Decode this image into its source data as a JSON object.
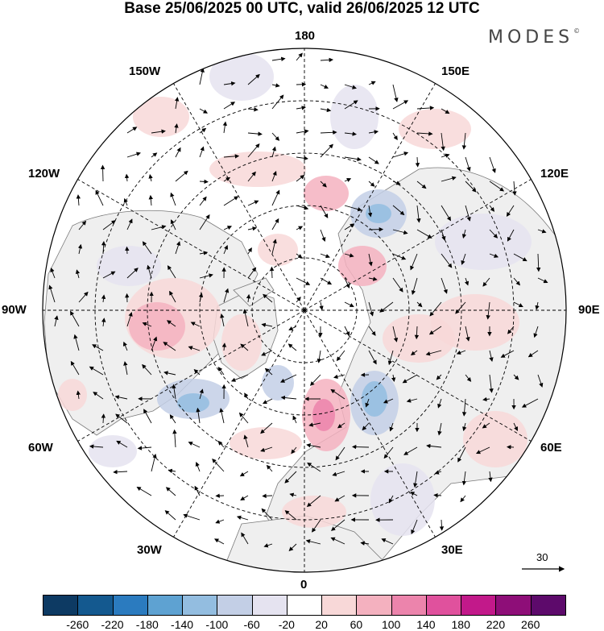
{
  "header": {
    "title": "Base 25/06/2025 00 UTC, valid 26/06/2025 12 UTC",
    "brand": "MODES",
    "brand_mark": "©"
  },
  "map": {
    "projection": "north-polar-stereographic",
    "center": "North Pole",
    "longitude_labels": {
      "top": "180",
      "bottom": "0",
      "left": "90W",
      "right": "90E",
      "upper_left_1": "150W",
      "upper_left_2": "120W",
      "lower_left_1": "60W",
      "lower_left_2": "30W",
      "upper_right_1": "150E",
      "upper_right_2": "120E",
      "lower_right_1": "60E",
      "lower_right_2": "30E"
    },
    "reference_vector": {
      "label": "30"
    },
    "colors": {
      "land": "#efefef",
      "coast": "#7a7a7a",
      "grid": "#000000"
    }
  },
  "colorbar": {
    "labels": [
      "-260",
      "-220",
      "-180",
      "-140",
      "-100",
      "-60",
      "-20",
      "20",
      "60",
      "100",
      "140",
      "180",
      "220",
      "260"
    ],
    "colors": [
      "#0d3a63",
      "#14598f",
      "#2b7bbf",
      "#5ea2d2",
      "#93bde0",
      "#c3cfe6",
      "#e5e3f0",
      "#ffffff",
      "#f8d8d8",
      "#f4b1bf",
      "#ec84ac",
      "#e0519d",
      "#c2198a",
      "#8e0e78",
      "#5d0a6b"
    ]
  }
}
